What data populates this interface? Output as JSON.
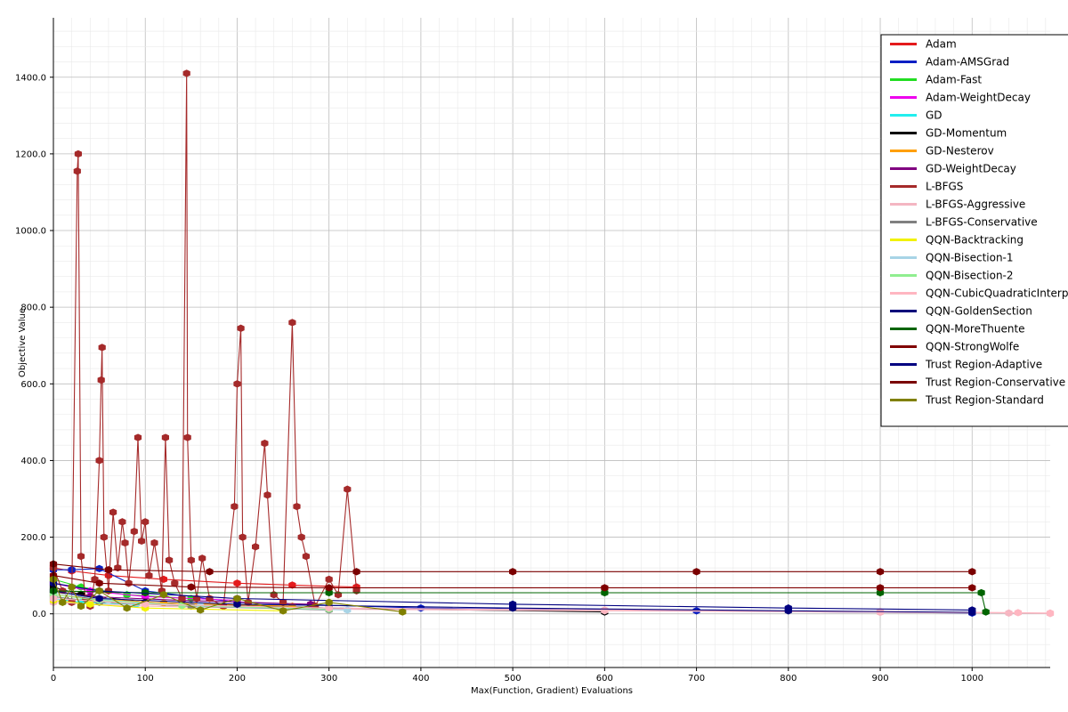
{
  "chart_data": {
    "type": "line",
    "title": "",
    "xlabel": "Max(Function, Gradient) Evaluations",
    "ylabel": "Objective Value",
    "xlim": [
      0,
      1085
    ],
    "ylim": [
      -140,
      1555
    ],
    "grid": true,
    "legend_position": "top-right",
    "x_ticks": [
      {
        "value": 0,
        "label": "0"
      },
      {
        "value": 100,
        "label": "100"
      },
      {
        "value": 200,
        "label": "200"
      },
      {
        "value": 300,
        "label": "300"
      },
      {
        "value": 400,
        "label": "400"
      },
      {
        "value": 500,
        "label": "500"
      },
      {
        "value": 600,
        "label": "600"
      },
      {
        "value": 700,
        "label": "700"
      },
      {
        "value": 800,
        "label": "800"
      },
      {
        "value": 900,
        "label": "900"
      },
      {
        "value": 1000,
        "label": "1000"
      }
    ],
    "y_ticks": [
      {
        "value": 0,
        "label": "0.0"
      },
      {
        "value": 200,
        "label": "200.0"
      },
      {
        "value": 400,
        "label": "400.0"
      },
      {
        "value": 600,
        "label": "600.0"
      },
      {
        "value": 800,
        "label": "800.0"
      },
      {
        "value": 1000,
        "label": "1000.0"
      },
      {
        "value": 1200,
        "label": "1200.0"
      },
      {
        "value": 1400,
        "label": "1400.0"
      }
    ],
    "series": [
      {
        "name": "Adam",
        "color": "#e41a1c",
        "x": [
          0,
          20,
          60,
          120,
          200,
          260,
          330
        ],
        "y": [
          120,
          112,
          100,
          90,
          80,
          75,
          70
        ]
      },
      {
        "name": "Adam-AMSGrad",
        "color": "#0a1fc4",
        "x": [
          0,
          20,
          50,
          100,
          200,
          400,
          700,
          1000
        ],
        "y": [
          115,
          115,
          118,
          60,
          30,
          15,
          8,
          2
        ]
      },
      {
        "name": "Adam-Fast",
        "color": "#22dd22",
        "x": [
          0,
          30,
          80,
          150
        ],
        "y": [
          90,
          70,
          50,
          40
        ]
      },
      {
        "name": "Adam-WeightDecay",
        "color": "#ee00ee",
        "x": [
          0,
          40,
          100,
          200
        ],
        "y": [
          80,
          60,
          45,
          35
        ]
      },
      {
        "name": "GD",
        "color": "#22eeee",
        "x": [
          0,
          30,
          90
        ],
        "y": [
          40,
          30,
          25
        ]
      },
      {
        "name": "GD-Momentum",
        "color": "#000000",
        "x": [
          0,
          30,
          100,
          300,
          600
        ],
        "y": [
          70,
          50,
          30,
          15,
          5
        ]
      },
      {
        "name": "GD-Nesterov",
        "color": "#ff9f00",
        "x": [
          0,
          40,
          120,
          260
        ],
        "y": [
          50,
          40,
          28,
          20
        ]
      },
      {
        "name": "GD-WeightDecay",
        "color": "#800080",
        "x": [
          0,
          40,
          140,
          280
        ],
        "y": [
          60,
          45,
          35,
          25
        ]
      },
      {
        "name": "L-BFGS",
        "color": "#a52a2a",
        "x": [
          0,
          10,
          20,
          26,
          27,
          30,
          35,
          40,
          45,
          50,
          52,
          53,
          55,
          60,
          65,
          70,
          75,
          78,
          82,
          88,
          92,
          96,
          100,
          104,
          110,
          118,
          122,
          126,
          132,
          140,
          145,
          146,
          150,
          156,
          162,
          170,
          185,
          197,
          200,
          204,
          206,
          212,
          220,
          230,
          233,
          240,
          250,
          260,
          265,
          270,
          275,
          285,
          300,
          310,
          320,
          330
        ],
        "y": [
          120,
          60,
          30,
          1155,
          1200,
          150,
          40,
          20,
          90,
          400,
          610,
          695,
          200,
          60,
          265,
          120,
          240,
          185,
          80,
          215,
          460,
          190,
          240,
          100,
          185,
          60,
          460,
          140,
          80,
          40,
          1410,
          460,
          140,
          40,
          145,
          40,
          20,
          280,
          600,
          745,
          200,
          30,
          175,
          445,
          310,
          50,
          30,
          760,
          280,
          200,
          150,
          20,
          90,
          50,
          325,
          60
        ]
      },
      {
        "name": "L-BFGS-Aggressive",
        "color": "#f4b6c2",
        "x": [
          0,
          100,
          300,
          600,
          900,
          1040,
          1085
        ],
        "y": [
          30,
          20,
          12,
          8,
          4,
          2,
          1
        ]
      },
      {
        "name": "L-BFGS-Conservative",
        "color": "#808080",
        "x": [
          0,
          50,
          150,
          300
        ],
        "y": [
          45,
          30,
          20,
          10
        ]
      },
      {
        "name": "QQN-Backtracking",
        "color": "#f2f200",
        "x": [
          0,
          40,
          100,
          250
        ],
        "y": [
          35,
          25,
          15,
          8
        ]
      },
      {
        "name": "QQN-Bisection-1",
        "color": "#a8d4e6",
        "x": [
          0,
          60,
          160,
          320
        ],
        "y": [
          55,
          35,
          20,
          10
        ]
      },
      {
        "name": "QQN-Bisection-2",
        "color": "#90ee90",
        "x": [
          0,
          50,
          140,
          300
        ],
        "y": [
          50,
          35,
          22,
          12
        ]
      },
      {
        "name": "QQN-CubicQuadraticInterpolation",
        "color": "#ffb6c1",
        "x": [
          0,
          100,
          300,
          600,
          900,
          1050,
          1085
        ],
        "y": [
          40,
          25,
          15,
          10,
          6,
          3,
          2
        ]
      },
      {
        "name": "QQN-GoldenSection",
        "color": "#00007a",
        "x": [
          0,
          50,
          200,
          500,
          800,
          1000
        ],
        "y": [
          60,
          40,
          25,
          15,
          8,
          4
        ]
      },
      {
        "name": "QQN-MoreThuente",
        "color": "#006400",
        "x": [
          0,
          100,
          300,
          600,
          900,
          1010,
          1015
        ],
        "y": [
          60,
          55,
          55,
          55,
          55,
          55,
          5
        ]
      },
      {
        "name": "QQN-StrongWolfe",
        "color": "#800000",
        "x": [
          0,
          50,
          150,
          300,
          600,
          900,
          1000
        ],
        "y": [
          100,
          80,
          70,
          68,
          68,
          68,
          68
        ]
      },
      {
        "name": "Trust Region-Adaptive",
        "color": "#000080",
        "x": [
          0,
          50,
          200,
          500,
          800,
          1000
        ],
        "y": [
          80,
          60,
          40,
          25,
          15,
          10
        ]
      },
      {
        "name": "Trust Region-Conservative",
        "color": "#7a0000",
        "x": [
          0,
          60,
          170,
          330,
          500,
          700,
          900,
          1000
        ],
        "y": [
          130,
          115,
          110,
          110,
          110,
          110,
          110,
          110
        ]
      },
      {
        "name": "Trust Region-Standard",
        "color": "#808000",
        "x": [
          0,
          10,
          20,
          30,
          50,
          80,
          120,
          160,
          200,
          250,
          300,
          380
        ],
        "y": [
          90,
          30,
          70,
          20,
          60,
          15,
          50,
          10,
          40,
          8,
          30,
          5
        ]
      }
    ]
  }
}
